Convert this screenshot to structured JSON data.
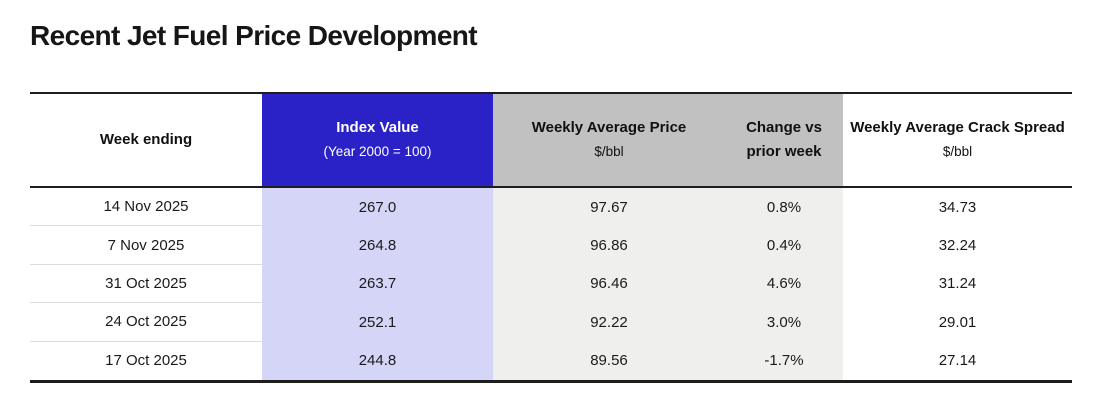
{
  "page": {
    "title": "Recent Jet Fuel Price Development"
  },
  "colors": {
    "accent_blue": "#2a21c6",
    "accent_blue_light": "#d5d5f8",
    "header_gray": "#c1c1c1",
    "body_gray": "#efefee"
  },
  "table": {
    "columns": [
      {
        "label": "Week ending",
        "sublabel": ""
      },
      {
        "label": "Index Value",
        "sublabel": "(Year 2000 = 100)"
      },
      {
        "label": "Weekly Average Price",
        "sublabel": "$/bbl"
      },
      {
        "label": "Change vs",
        "sublabel": "prior week"
      },
      {
        "label": "Weekly Average Crack Spread",
        "sublabel": "$/bbl"
      }
    ],
    "rows": [
      {
        "week_ending": "14 Nov 2025",
        "index_value": "267.0",
        "avg_price": "97.67",
        "change": "0.8%",
        "crack_spread": "34.73"
      },
      {
        "week_ending": "7 Nov 2025",
        "index_value": "264.8",
        "avg_price": "96.86",
        "change": "0.4%",
        "crack_spread": "32.24"
      },
      {
        "week_ending": "31 Oct 2025",
        "index_value": "263.7",
        "avg_price": "96.46",
        "change": "4.6%",
        "crack_spread": "31.24"
      },
      {
        "week_ending": "24 Oct 2025",
        "index_value": "252.1",
        "avg_price": "92.22",
        "change": "3.0%",
        "crack_spread": "29.01"
      },
      {
        "week_ending": "17 Oct 2025",
        "index_value": "244.8",
        "avg_price": "89.56",
        "change": "-1.7%",
        "crack_spread": "27.14"
      }
    ]
  },
  "chart_data": {
    "type": "table",
    "title": "Recent Jet Fuel Price Development",
    "columns": [
      "Week ending",
      "Index Value (Year 2000 = 100)",
      "Weekly Average Price $/bbl",
      "Change vs prior week",
      "Weekly Average Crack Spread $/bbl"
    ],
    "rows": [
      [
        "14 Nov 2025",
        267.0,
        97.67,
        "0.8%",
        34.73
      ],
      [
        "7 Nov 2025",
        264.8,
        96.86,
        "0.4%",
        32.24
      ],
      [
        "31 Oct 2025",
        263.7,
        96.46,
        "4.6%",
        31.24
      ],
      [
        "24 Oct 2025",
        252.1,
        92.22,
        "3.0%",
        29.01
      ],
      [
        "17 Oct 2025",
        244.8,
        89.56,
        "-1.7%",
        27.14
      ]
    ]
  }
}
